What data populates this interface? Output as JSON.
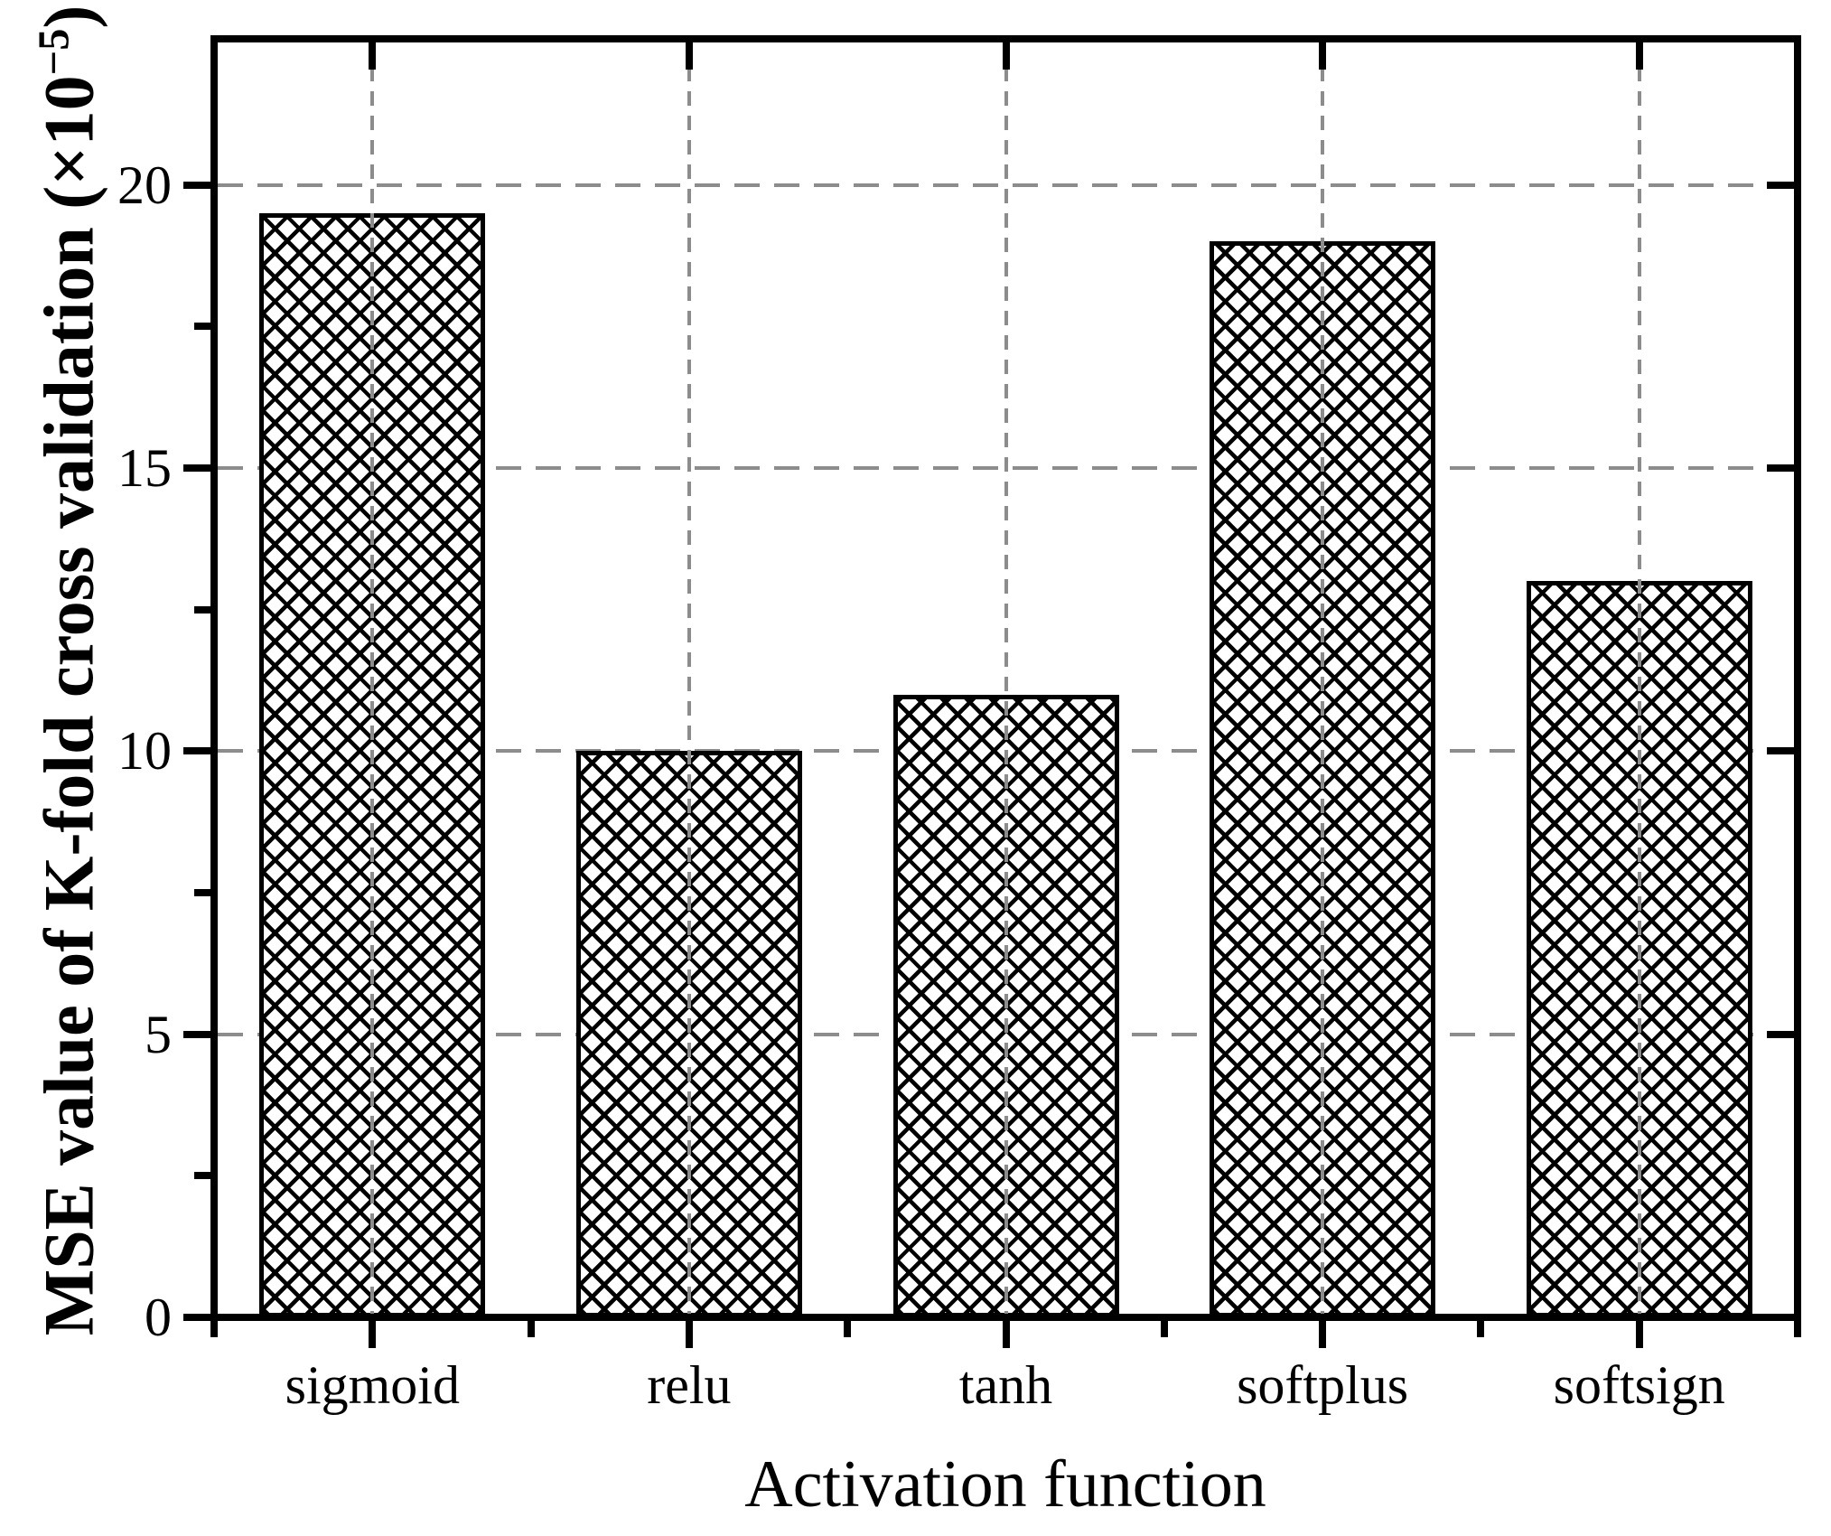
{
  "figure": {
    "background": "#ffffff"
  },
  "chart_data": {
    "type": "bar",
    "title": "",
    "categories": [
      "sigmoid",
      "relu",
      "tanh",
      "softplus",
      "softsign"
    ],
    "values": [
      19.5,
      10,
      11,
      19,
      13
    ],
    "xlabel": "Activation function",
    "ylabel": "MSE value of K-fold cross validation (×10−5)",
    "ylabel_parts": {
      "pre": "MSE value of K-fold cross validation (×10",
      "sup": "−5",
      "post": ")"
    },
    "yticks": [
      0,
      5,
      10,
      15,
      20
    ],
    "ytick_minor": [
      2.5,
      7.5,
      12.5,
      17.5
    ],
    "ylim": [
      0,
      22.58
    ],
    "grid": true,
    "grid_style": "dashed at major y ticks and bar centers",
    "legend": false,
    "bar_style": {
      "fill": "#ffffff",
      "hatch": "diagonal-crosshatch",
      "outline": "#000000"
    },
    "colors": {
      "axis": "#000000",
      "grid": "#8c8c8c",
      "text": "#000000",
      "background": "#ffffff"
    }
  }
}
